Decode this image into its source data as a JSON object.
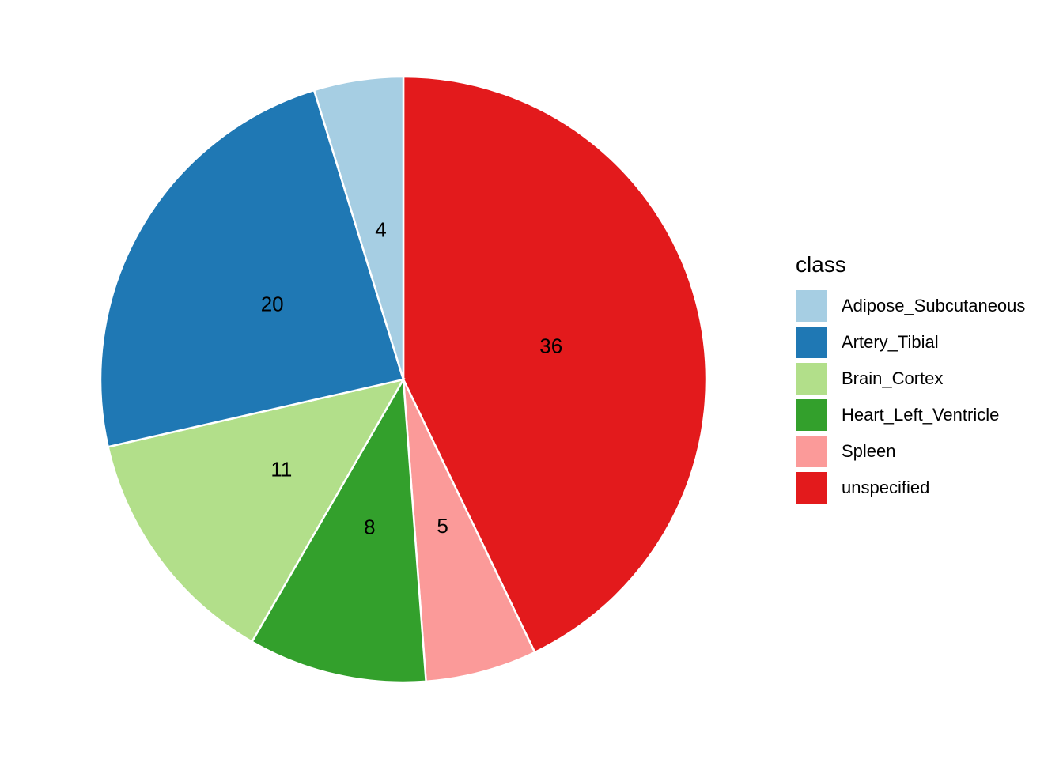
{
  "chart_data": {
    "type": "pie",
    "legend_title": "class",
    "legend_position": "right",
    "direction": "clockwise",
    "start": "top",
    "slices": [
      {
        "label": "unspecified",
        "value": 36,
        "color": "#E31A1C"
      },
      {
        "label": "Spleen",
        "value": 5,
        "color": "#FB9A99"
      },
      {
        "label": "Heart_Left_Ventricle",
        "value": 8,
        "color": "#33A02C"
      },
      {
        "label": "Brain_Cortex",
        "value": 11,
        "color": "#B2DF8A"
      },
      {
        "label": "Artery_Tibial",
        "value": 20,
        "color": "#1F78B4"
      },
      {
        "label": "Adipose_Subcutaneous",
        "value": 4,
        "color": "#A6CEE3"
      }
    ],
    "legend_order": [
      "Adipose_Subcutaneous",
      "Artery_Tibial",
      "Brain_Cortex",
      "Heart_Left_Ventricle",
      "Spleen",
      "unspecified"
    ]
  }
}
